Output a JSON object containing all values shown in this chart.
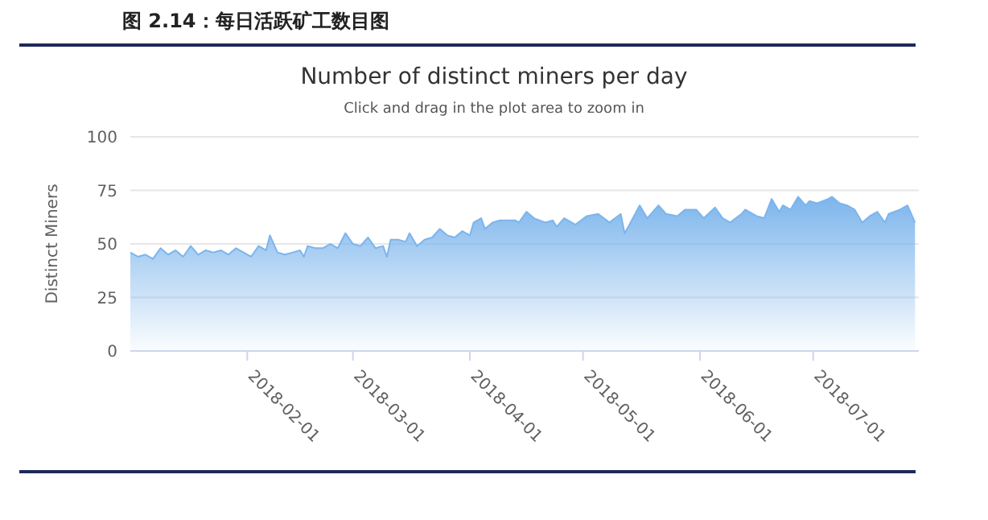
{
  "chart_data": {
    "type": "area",
    "title": "图 2.14：每日活跃矿工数目图",
    "subtitle": "Number of distinct miners per day",
    "annotations": [
      "Click and drag in the plot area to zoom in"
    ],
    "ylabel": "Distinct Miners",
    "x": [
      "2018-01-01",
      "2018-01-03",
      "2018-01-05",
      "2018-01-07",
      "2018-01-09",
      "2018-01-11",
      "2018-01-13",
      "2018-01-15",
      "2018-01-17",
      "2018-01-19",
      "2018-01-21",
      "2018-01-23",
      "2018-01-25",
      "2018-01-27",
      "2018-01-29",
      "2018-01-31",
      "2018-02-02",
      "2018-02-04",
      "2018-02-06",
      "2018-02-07",
      "2018-02-09",
      "2018-02-11",
      "2018-02-13",
      "2018-02-15",
      "2018-02-16",
      "2018-02-17",
      "2018-02-19",
      "2018-02-21",
      "2018-02-23",
      "2018-02-25",
      "2018-02-27",
      "2018-03-01",
      "2018-03-03",
      "2018-03-05",
      "2018-03-07",
      "2018-03-09",
      "2018-03-10",
      "2018-03-11",
      "2018-03-13",
      "2018-03-15",
      "2018-03-16",
      "2018-03-18",
      "2018-03-20",
      "2018-03-22",
      "2018-03-24",
      "2018-03-26",
      "2018-03-28",
      "2018-03-30",
      "2018-04-01",
      "2018-04-02",
      "2018-04-04",
      "2018-04-05",
      "2018-04-07",
      "2018-04-09",
      "2018-04-11",
      "2018-04-13",
      "2018-04-14",
      "2018-04-16",
      "2018-04-18",
      "2018-04-21",
      "2018-04-23",
      "2018-04-24",
      "2018-04-26",
      "2018-04-29",
      "2018-05-02",
      "2018-05-05",
      "2018-05-08",
      "2018-05-11",
      "2018-05-12",
      "2018-05-13",
      "2018-05-16",
      "2018-05-18",
      "2018-05-21",
      "2018-05-23",
      "2018-05-26",
      "2018-05-28",
      "2018-05-31",
      "2018-06-02",
      "2018-06-05",
      "2018-06-07",
      "2018-06-09",
      "2018-06-12",
      "2018-06-13",
      "2018-06-16",
      "2018-06-18",
      "2018-06-20",
      "2018-06-22",
      "2018-06-23",
      "2018-06-25",
      "2018-06-27",
      "2018-06-29",
      "2018-06-30",
      "2018-07-02",
      "2018-07-05",
      "2018-07-06",
      "2018-07-08",
      "2018-07-10",
      "2018-07-12",
      "2018-07-14",
      "2018-07-16",
      "2018-07-18",
      "2018-07-20",
      "2018-07-21",
      "2018-07-24",
      "2018-07-26",
      "2018-07-28"
    ],
    "series": [
      {
        "color": "#7cb5ec",
        "values": [
          46,
          44,
          45,
          43,
          48,
          45,
          47,
          44,
          49,
          45,
          47,
          46,
          47,
          45,
          48,
          46,
          44,
          49,
          47,
          54,
          46,
          45,
          46,
          47,
          44,
          49,
          48,
          48,
          50,
          48,
          55,
          50,
          49,
          53,
          48,
          49,
          44,
          52,
          52,
          51,
          55,
          49,
          52,
          53,
          57,
          54,
          53,
          56,
          54,
          60,
          62,
          57,
          60,
          61,
          61,
          61,
          60,
          65,
          62,
          60,
          61,
          58,
          62,
          59,
          63,
          64,
          60,
          64,
          55,
          58,
          68,
          62,
          68,
          64,
          63,
          66,
          66,
          62,
          67,
          62,
          60,
          64,
          66,
          63,
          62,
          71,
          65,
          68,
          66,
          72,
          68,
          70,
          69,
          71,
          72,
          69,
          68,
          66,
          60,
          63,
          65,
          60,
          64,
          66,
          68,
          60
        ]
      }
    ],
    "xlim": [
      "2018-01-01",
      "2018-07-29"
    ],
    "xticks": [
      "2018-02-01",
      "2018-03-01",
      "2018-04-01",
      "2018-05-01",
      "2018-06-01",
      "2018-07-01"
    ],
    "ylim": [
      0,
      100
    ],
    "yticks": [
      0,
      25,
      50,
      75,
      100
    ],
    "grid": "y"
  }
}
